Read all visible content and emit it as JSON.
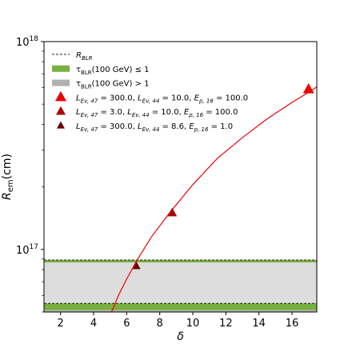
{
  "chart_data": {
    "type": "line",
    "xlabel": "δ",
    "ylabel_main": "R",
    "ylabel_sub": "em",
    "ylabel_unit": "(cm)",
    "xlim": [
      1.0,
      17.5
    ],
    "ylim": [
      5e+16,
      1e+18
    ],
    "yscale": "log",
    "x_ticks": [
      2,
      4,
      6,
      8,
      10,
      12,
      14,
      16
    ],
    "x_tick_labels": [
      "2",
      "4",
      "6",
      "8",
      "10",
      "12",
      "14",
      "16"
    ],
    "y_ticks": [
      1e+17,
      1e+18
    ],
    "y_tick_bases": [
      "10",
      "10"
    ],
    "y_tick_exps": [
      "17",
      "18"
    ],
    "colors": {
      "curve": "#ee0000",
      "band_thin": "#78b040",
      "band_thick": "#b0b0b0",
      "band_fill": "#dddddd",
      "m1": "#ee0000",
      "m2": "#aa0000",
      "m3": "#660000"
    },
    "curve": {
      "x": [
        4.9,
        5.5,
        6.0,
        6.6,
        7.5,
        8.6,
        10.0,
        11.5,
        13.0,
        14.5,
        16.0,
        17.0,
        17.5
      ],
      "y": [
        4.6e+16,
        6e+16,
        7.2e+16,
        8.8e+16,
        1.15e+17,
        1.5e+17,
        2.05e+17,
        2.75e+17,
        3.45e+17,
        4.25e+17,
        5.1e+17,
        5.7e+17,
        6.05e+17
      ]
    },
    "r_blr_lines": [
      5.5e+16,
      8.9e+16
    ],
    "bands": [
      {
        "kind": "thin",
        "y": [
          8.65e+16,
          8.9e+16
        ]
      },
      {
        "kind": "fill",
        "y": [
          5.5e+16,
          8.65e+16
        ]
      },
      {
        "kind": "thin",
        "y": [
          5.1e+16,
          5.5e+16
        ]
      },
      {
        "kind": "thick",
        "y": [
          4.6e+16,
          5.1e+16
        ]
      }
    ],
    "markers": [
      {
        "x": 17.0,
        "y": 5.9e+17,
        "size": 14,
        "color": "#ee0000"
      },
      {
        "x": 8.75,
        "y": 1.5e+17,
        "size": 12,
        "color": "#aa0000"
      },
      {
        "x": 6.6,
        "y": 8.3e+16,
        "size": 10,
        "color": "#660000"
      }
    ],
    "legend": {
      "placement": "top-left",
      "entries": [
        {
          "kind": "dashed",
          "text": "R_BLR"
        },
        {
          "kind": "thin-band",
          "text": "τ_BLR(100 GeV) ≤ 1"
        },
        {
          "kind": "thick-band",
          "text": "τ_BLR(100 GeV) > 1"
        },
        {
          "kind": "marker",
          "marker": 0,
          "text": "L_Eν,47 = 300.0, L_Eν,44 = 10.0, E_p,16 = 100.0"
        },
        {
          "kind": "marker",
          "marker": 1,
          "text": "L_Eν,47 = 3.0, L_Eν,44 = 10.0, E_p,16 = 100.0"
        },
        {
          "kind": "marker",
          "marker": 2,
          "text": "L_Eν,47 = 300.0, L_Eν,44 = 8.6, E_p,16 = 1.0"
        }
      ]
    }
  }
}
